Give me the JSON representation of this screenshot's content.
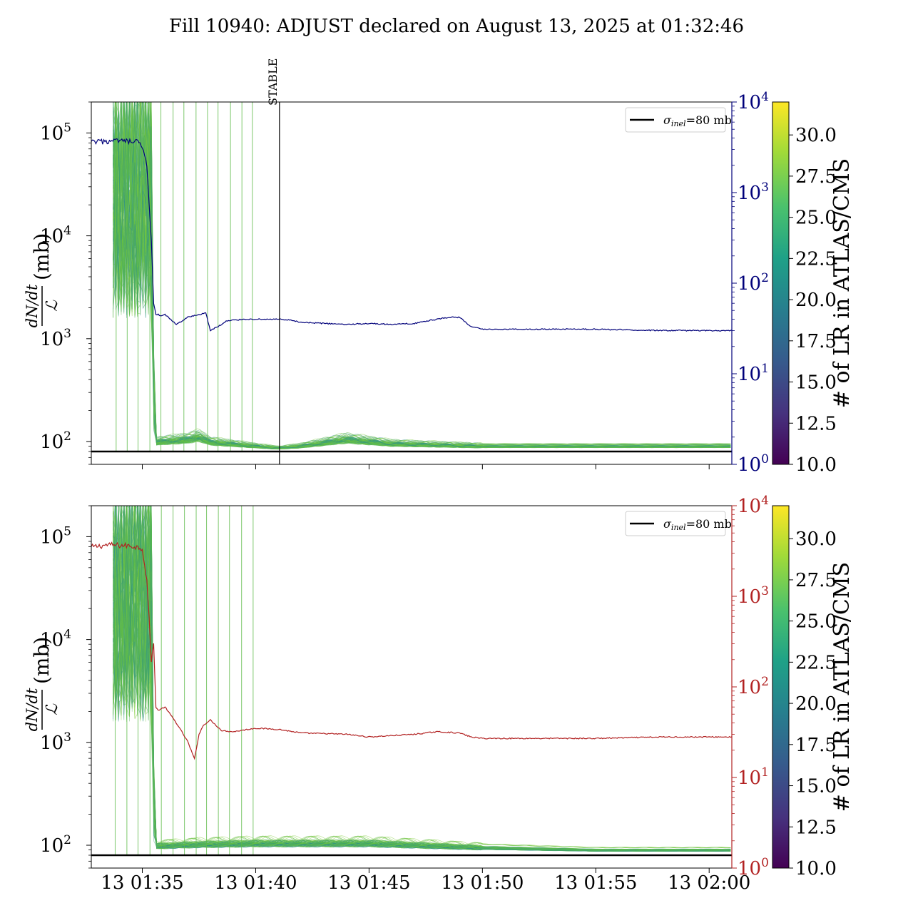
{
  "title": "Fill 10940: ADJUST declared on August 13, 2025 at 01:32:46",
  "colors": {
    "top_right_axis": "#00007a",
    "bottom_right_axis": "#b22222",
    "reference_line": "#000000",
    "bundle_main": "#5cba47"
  },
  "chart_data": [
    {
      "type": "line",
      "panel": "top",
      "ylabel_num": "dN/dt",
      "ylabel_den": "ℒ",
      "ylabel_unit": "(mb)",
      "ylim": [
        60,
        200000
      ],
      "yscale": "log",
      "yticks": [
        {
          "base": "10",
          "exp": "2",
          "v": 100
        },
        {
          "base": "10",
          "exp": "3",
          "v": 1000
        },
        {
          "base": "10",
          "exp": "4",
          "v": 10000
        },
        {
          "base": "10",
          "exp": "5",
          "v": 100000
        }
      ],
      "y2lim": [
        1,
        10000
      ],
      "y2scale": "log",
      "y2ticks": [
        {
          "base": "10",
          "exp": "0",
          "v": 1
        },
        {
          "base": "10",
          "exp": "1",
          "v": 10
        },
        {
          "base": "10",
          "exp": "2",
          "v": 100
        },
        {
          "base": "10",
          "exp": "3",
          "v": 1000
        },
        {
          "base": "10",
          "exp": "4",
          "v": 10000
        }
      ],
      "xlim": [
        -7.25,
        21.0
      ],
      "xlabel": "",
      "stable_line": {
        "x": 1.05,
        "label": "STABLE"
      },
      "legend": {
        "label_sym": "σ",
        "label_sub": "inel",
        "label_rest": "=80 mb",
        "placement": "upper right"
      },
      "reference": {
        "value": 80
      },
      "series": [
        {
          "axis": "right",
          "color": "#00007a",
          "x": [
            -7.25,
            -6.0,
            -5.2,
            -5.0,
            -4.8,
            -4.6,
            -4.5,
            -4.4,
            -4.3,
            -4.2,
            -4.0,
            -3.5,
            -3.0,
            -2.5,
            -2.2,
            -2.0,
            -1.5,
            -1.3,
            -1.0,
            -0.5,
            0.0,
            0.5,
            1.0,
            1.5,
            2.0,
            3.0,
            4.0,
            5.0,
            6.0,
            7.0,
            8.0,
            8.5,
            9.0,
            9.5,
            10.0,
            12.0,
            15.0,
            18.0,
            21.0
          ],
          "y": [
            3600,
            3700,
            3600,
            3200,
            2000,
            300,
            60,
            45,
            45,
            43,
            45,
            35,
            42,
            45,
            47,
            30,
            35,
            38,
            39,
            40,
            40,
            40,
            40,
            39,
            37,
            36,
            35,
            36,
            35,
            36,
            40,
            42,
            42,
            33,
            31,
            31,
            31,
            30,
            30
          ]
        }
      ],
      "bundle": {
        "colorbar_label": "# of LR in ATLAS/CMS",
        "colorbar_range": [
          10.0,
          32.0
        ],
        "colorbar_ticks": [
          "10.0",
          "12.5",
          "15.0",
          "17.5",
          "20.0",
          "22.5",
          "25.0",
          "27.5",
          "30.0"
        ],
        "colorscale": "viridis",
        "typical_x": [
          -5.0,
          -4.6,
          -4.4,
          -3.0,
          -2.5,
          -2.0,
          0.0,
          1.0,
          2.0,
          4.0,
          6.0,
          8.0,
          10.0,
          21.0
        ],
        "typical_y": [
          200000,
          150,
          95,
          100,
          105,
          95,
          88,
          85,
          88,
          100,
          92,
          90,
          88,
          88
        ]
      }
    },
    {
      "type": "line",
      "panel": "bottom",
      "ylabel_num": "dN/dt",
      "ylabel_den": "ℒ",
      "ylabel_unit": "(mb)",
      "ylim": [
        60,
        200000
      ],
      "yscale": "log",
      "yticks": [
        {
          "base": "10",
          "exp": "2",
          "v": 100
        },
        {
          "base": "10",
          "exp": "3",
          "v": 1000
        },
        {
          "base": "10",
          "exp": "4",
          "v": 10000
        },
        {
          "base": "10",
          "exp": "5",
          "v": 100000
        }
      ],
      "y2lim": [
        1,
        10000
      ],
      "y2scale": "log",
      "y2ticks": [
        {
          "base": "10",
          "exp": "0",
          "v": 1
        },
        {
          "base": "10",
          "exp": "1",
          "v": 10
        },
        {
          "base": "10",
          "exp": "2",
          "v": 100
        },
        {
          "base": "10",
          "exp": "3",
          "v": 1000
        },
        {
          "base": "10",
          "exp": "4",
          "v": 10000
        }
      ],
      "xlim": [
        -7.25,
        21.0
      ],
      "xtick_values": [
        -5,
        0,
        5,
        10,
        15,
        20
      ],
      "xtick_labels": [
        "13 01:35",
        "13 01:40",
        "13 01:45",
        "13 01:50",
        "13 01:55",
        "13 02:00"
      ],
      "legend": {
        "label_sym": "σ",
        "label_sub": "inel",
        "label_rest": "=80 mb",
        "placement": "upper right"
      },
      "reference": {
        "value": 80
      },
      "series": [
        {
          "axis": "right",
          "color": "#b22222",
          "x": [
            -7.25,
            -6.5,
            -5.5,
            -5.0,
            -4.8,
            -4.6,
            -4.5,
            -4.4,
            -4.3,
            -4.0,
            -3.5,
            -3.0,
            -2.7,
            -2.5,
            -2.3,
            -2.0,
            -1.5,
            -1.0,
            0.0,
            1.0,
            2.0,
            4.0,
            5.0,
            6.0,
            7.0,
            8.0,
            9.0,
            9.5,
            10.0,
            12.0,
            15.0,
            18.0,
            21.0
          ],
          "y": [
            3500,
            3700,
            3600,
            3400,
            1500,
            200,
            300,
            60,
            55,
            60,
            40,
            25,
            16,
            30,
            38,
            43,
            33,
            32,
            35,
            34,
            31,
            30,
            28,
            29,
            30,
            32,
            31,
            28,
            27,
            27,
            27,
            28,
            28
          ]
        }
      ],
      "bundle": {
        "colorbar_label": "# of LR in ATLAS/CMS",
        "colorbar_range": [
          10.0,
          32.0
        ],
        "colorbar_ticks": [
          "10.0",
          "12.5",
          "15.0",
          "17.5",
          "20.0",
          "22.5",
          "25.0",
          "27.5",
          "30.0"
        ],
        "colorscale": "viridis",
        "typical_x": [
          -5.0,
          -4.6,
          -4.4,
          -2.5,
          0.0,
          5.0,
          10.0,
          15.0,
          21.0
        ],
        "typical_y": [
          200000,
          130,
          95,
          98,
          100,
          100,
          92,
          88,
          88
        ]
      }
    }
  ]
}
